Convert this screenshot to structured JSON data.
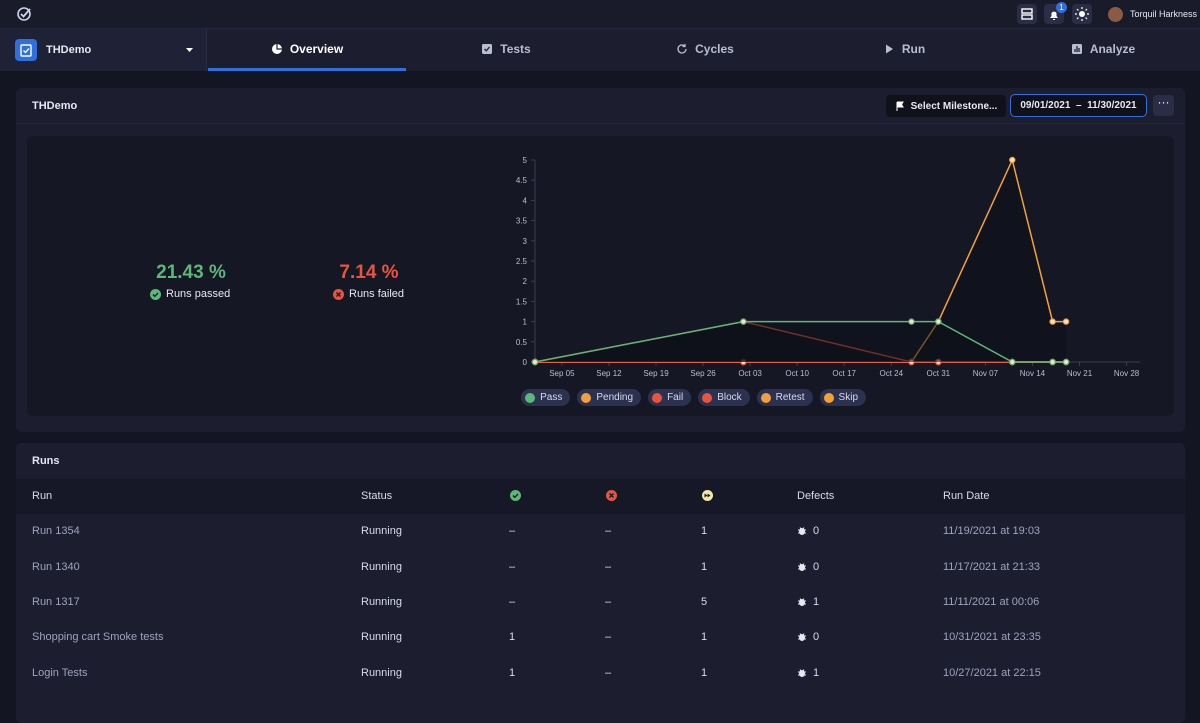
{
  "topbar": {
    "notification_count": "1",
    "user_name": "Torquil Harkness"
  },
  "nav": {
    "project": "THDemo",
    "tabs": [
      "Overview",
      "Tests",
      "Cycles",
      "Run",
      "Analyze"
    ],
    "active_tab": 0
  },
  "summary": {
    "title": "THDemo",
    "milestone_button": "Select Milestone...",
    "date_range": "09/01/2021  –  11/30/2021",
    "passed_value": "21.43 %",
    "passed_label": "Runs passed",
    "failed_value": "7.14 %",
    "failed_label": "Runs failed"
  },
  "chart_data": {
    "type": "line",
    "x": [
      "Sep 01",
      "Oct 02",
      "Oct 27",
      "Oct 31",
      "Nov 11",
      "Nov 17",
      "Nov 19"
    ],
    "series": [
      {
        "name": "Pass",
        "color": "#5cb878",
        "values": [
          0,
          1,
          1,
          1,
          0,
          0,
          0
        ]
      },
      {
        "name": "Pending",
        "color": "#f0a03c",
        "values": [
          0,
          0,
          0,
          0,
          0,
          0,
          0
        ]
      },
      {
        "name": "Fail",
        "color": "#e8553e",
        "values": [
          0,
          0,
          0,
          0,
          0,
          0,
          0
        ]
      },
      {
        "name": "Block",
        "color": "#e8553e",
        "values": [
          0,
          1,
          0,
          0,
          0,
          0,
          0
        ]
      },
      {
        "name": "Retest",
        "color": "#f0a03c",
        "values": [
          0,
          0,
          0,
          0,
          0,
          0,
          0
        ]
      },
      {
        "name": "Skip",
        "color": "#f5a234",
        "values": [
          0,
          0,
          0,
          1,
          5,
          1,
          1
        ]
      }
    ],
    "xlim": [
      "Sep 01",
      "Nov 30"
    ],
    "xticks": [
      "Sep 05",
      "Sep 12",
      "Sep 19",
      "Sep 26",
      "Oct 03",
      "Oct 10",
      "Oct 17",
      "Oct 24",
      "Oct 31",
      "Nov 07",
      "Nov 14",
      "Nov 21",
      "Nov 28"
    ],
    "ylim": [
      0,
      5
    ],
    "yticks": [
      0,
      0.5,
      1,
      1.5,
      2,
      2.5,
      3,
      3.5,
      4,
      4.5,
      5
    ]
  },
  "runs": {
    "title": "Runs",
    "columns": {
      "run": "Run",
      "status": "Status",
      "defects": "Defects",
      "run_date": "Run Date"
    },
    "rows": [
      [
        "Run 1354",
        "Running",
        "–",
        "–",
        "1",
        "0",
        "11/19/2021 at 19:03"
      ],
      [
        "Run 1340",
        "Running",
        "–",
        "–",
        "1",
        "0",
        "11/17/2021 at 21:33"
      ],
      [
        "Run 1317",
        "Running",
        "–",
        "–",
        "5",
        "1",
        "11/11/2021 at 00:06"
      ],
      [
        "Shopping cart Smoke tests",
        "Running",
        "1",
        "–",
        "1",
        "0",
        "10/31/2021 at 23:35"
      ],
      [
        "Login Tests",
        "Running",
        "1",
        "–",
        "1",
        "1",
        "10/27/2021 at 22:15"
      ]
    ]
  }
}
